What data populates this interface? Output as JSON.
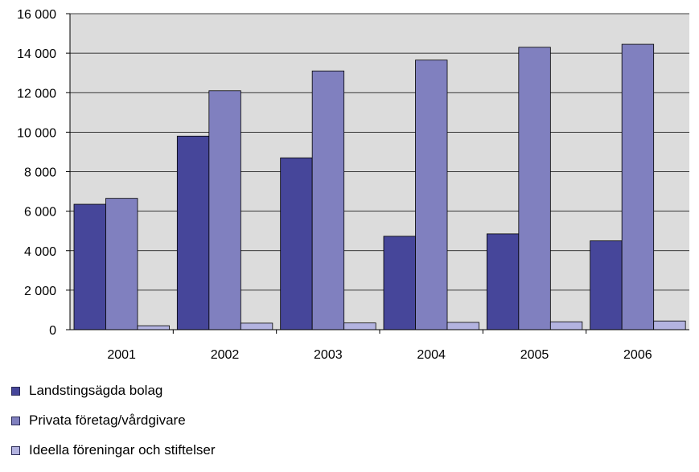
{
  "chart_data": {
    "type": "bar",
    "categories": [
      "2001",
      "2002",
      "2003",
      "2004",
      "2005",
      "2006"
    ],
    "series": [
      {
        "name": "Landstingsägda bolag",
        "color": "#46469a",
        "values": [
          6350,
          9800,
          8700,
          4730,
          4850,
          4500
        ]
      },
      {
        "name": "Privata företag/vårdgivare",
        "color": "#8080bf",
        "values": [
          6650,
          12100,
          13100,
          13650,
          14300,
          14450
        ]
      },
      {
        "name": "Ideella föreningar och stiftelser",
        "color": "#b3b3e0",
        "values": [
          200,
          330,
          340,
          370,
          400,
          440
        ]
      }
    ],
    "ylim": [
      0,
      16000
    ],
    "yticks": [
      0,
      2000,
      4000,
      6000,
      8000,
      10000,
      12000,
      14000,
      16000
    ],
    "ytick_labels": [
      "0",
      "2 000",
      "4 000",
      "6 000",
      "8 000",
      "10 000",
      "12 000",
      "14 000",
      "16 000"
    ],
    "grid": true,
    "plot_background": "#dcdcdc",
    "legend_position": "bottom-left"
  }
}
